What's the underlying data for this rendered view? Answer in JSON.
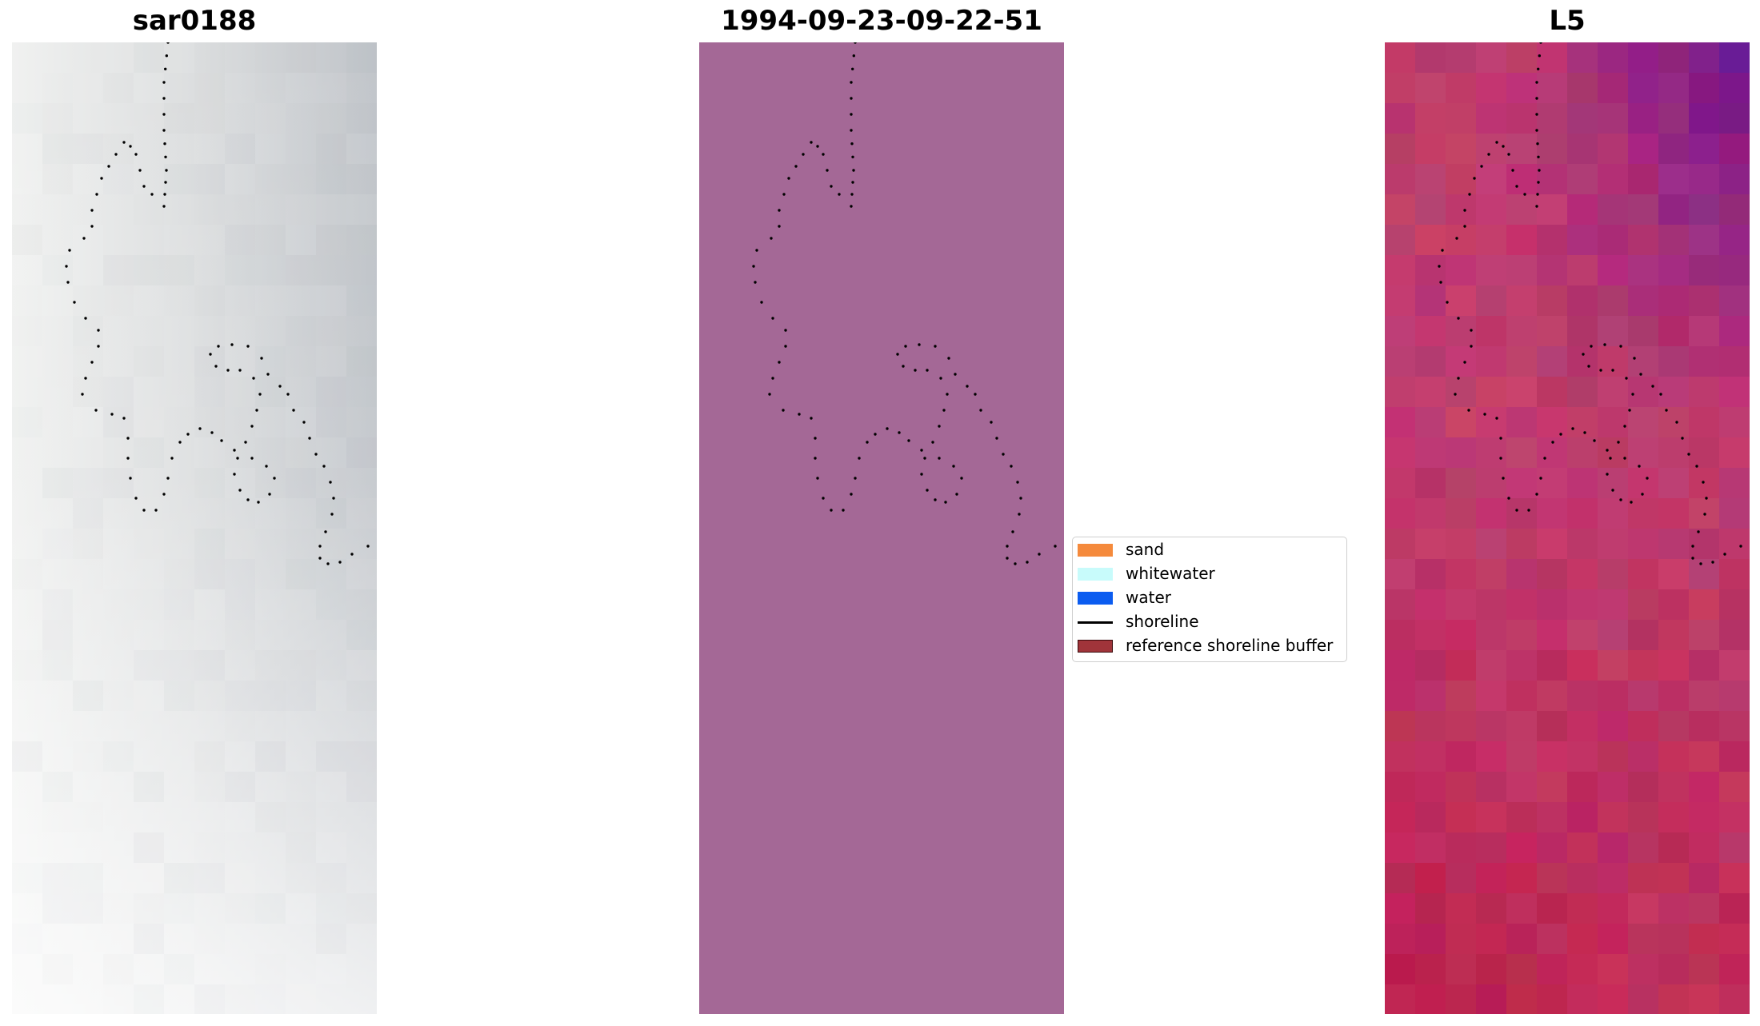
{
  "panels": [
    {
      "id": "left",
      "title": "sar0188"
    },
    {
      "id": "mid",
      "title": "1994-09-23-09-22-51",
      "fill_color": "#a46896"
    },
    {
      "id": "right",
      "title": "L5"
    }
  ],
  "legend": {
    "items": [
      {
        "label": "sand",
        "color": "#f58a3c",
        "kind": "patch"
      },
      {
        "label": "whitewater",
        "color": "#c8fbfb",
        "kind": "patch"
      },
      {
        "label": "water",
        "color": "#0b5cf0",
        "kind": "patch"
      },
      {
        "label": "shoreline",
        "color": "#000000",
        "kind": "line"
      },
      {
        "label": "reference shoreline buffer",
        "color": "#a0343a",
        "kind": "patch-outlined"
      }
    ]
  },
  "colors": {
    "shoreline_dots": "#000000",
    "left_image_tones": [
      "#e9ebea",
      "#c2c6cb",
      "#f6f6f6"
    ],
    "right_image_tones": [
      "#c4416e",
      "#6a169c",
      "#bd0f3a"
    ]
  }
}
